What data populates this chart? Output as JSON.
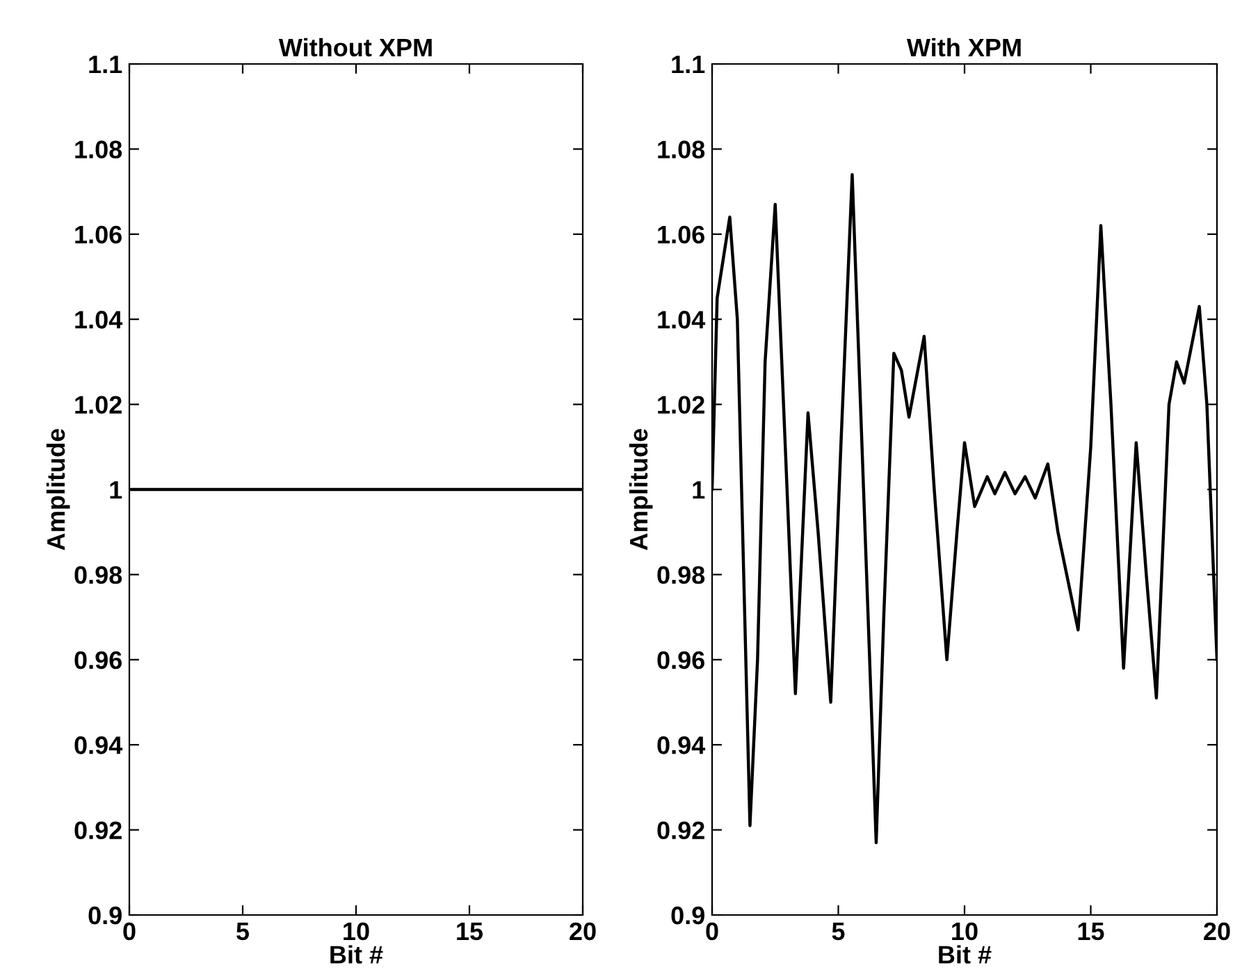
{
  "chart_data": [
    {
      "type": "line",
      "title": "Without XPM",
      "xlabel": "Bit #",
      "ylabel": "Amplitude",
      "x": [
        0,
        20
      ],
      "series": [
        {
          "color": "#000000",
          "values": [
            1,
            1
          ]
        }
      ],
      "xlim": [
        0,
        20
      ],
      "xticks": [
        0,
        5,
        10,
        15,
        20
      ],
      "ylim": [
        0.9,
        1.1
      ],
      "yticks": [
        0.9,
        0.92,
        0.94,
        0.96,
        0.98,
        1,
        1.02,
        1.04,
        1.06,
        1.08,
        1.1
      ],
      "grid": false,
      "legend": false
    },
    {
      "type": "line",
      "title": "With XPM",
      "xlabel": "Bit #",
      "ylabel": "Amplitude",
      "x": [
        0,
        0.2,
        0.7,
        1.0,
        1.5,
        1.8,
        2.1,
        2.5,
        2.9,
        3.3,
        3.8,
        4.2,
        4.7,
        5.1,
        5.55,
        6.0,
        6.5,
        6.8,
        7.2,
        7.5,
        7.8,
        8.4,
        8.8,
        9.3,
        9.7,
        10.0,
        10.4,
        10.9,
        11.2,
        11.6,
        12.0,
        12.4,
        12.8,
        13.3,
        13.7,
        14.5,
        15.0,
        15.4,
        15.8,
        16.3,
        16.8,
        17.2,
        17.6,
        18.1,
        18.4,
        18.7,
        19.3,
        19.6,
        20
      ],
      "series": [
        {
          "color": "#000000",
          "values": [
            1.0,
            1.045,
            1.064,
            1.04,
            0.921,
            0.96,
            1.03,
            1.067,
            1.01,
            0.952,
            1.018,
            0.99,
            0.95,
            1.01,
            1.074,
            1.0,
            0.917,
            0.97,
            1.032,
            1.028,
            1.017,
            1.036,
            1.0,
            0.96,
            0.99,
            1.011,
            0.996,
            1.003,
            0.999,
            1.004,
            0.999,
            1.003,
            0.998,
            1.006,
            0.99,
            0.967,
            1.01,
            1.062,
            1.02,
            0.958,
            1.011,
            0.98,
            0.951,
            1.02,
            1.03,
            1.025,
            1.043,
            1.02,
            0.96
          ]
        }
      ],
      "xlim": [
        0,
        20
      ],
      "xticks": [
        0,
        5,
        10,
        15,
        20
      ],
      "ylim": [
        0.9,
        1.1
      ],
      "yticks": [
        0.9,
        0.92,
        0.94,
        0.96,
        0.98,
        1,
        1.02,
        1.04,
        1.06,
        1.08,
        1.1
      ],
      "grid": false,
      "legend": false
    }
  ]
}
